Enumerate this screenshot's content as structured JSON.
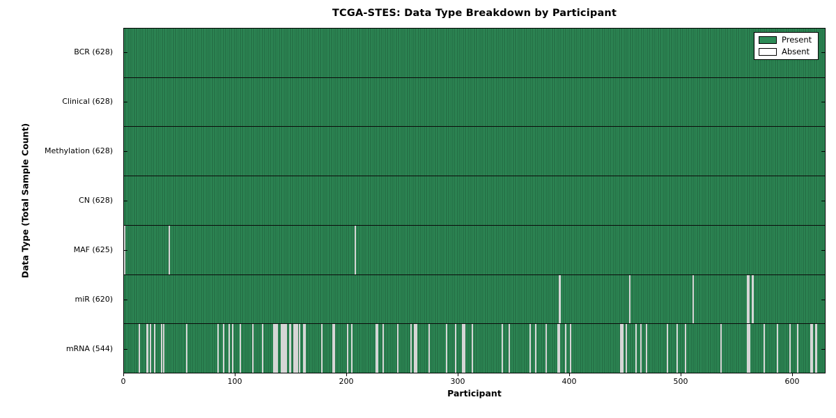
{
  "chart_data": {
    "type": "heatmap",
    "title": "TCGA-STES: Data Type Breakdown by Participant",
    "xlabel": "Participant",
    "ylabel": "Data Type (Total Sample Count)",
    "x_ticks": [
      0,
      100,
      200,
      300,
      400,
      500,
      600
    ],
    "xlim": [
      0,
      630
    ],
    "total_participants": 628,
    "grid": false,
    "legend": {
      "position": "upper-right",
      "entries": [
        {
          "label": "Present",
          "color": "#2e8b57"
        },
        {
          "label": "Absent",
          "color": "#ffffff"
        }
      ]
    },
    "colors": {
      "present": "#2e8b57",
      "present_stripe": "#1e5c3a",
      "absent": "#e4e4e4",
      "border": "#000000"
    },
    "rows": [
      {
        "data_type": "BCR",
        "label": "BCR (628)",
        "present": 628,
        "absent": 0,
        "absent_indices": []
      },
      {
        "data_type": "Clinical",
        "label": "Clinical (628)",
        "present": 628,
        "absent": 0,
        "absent_indices": []
      },
      {
        "data_type": "Methylation",
        "label": "Methylation (628)",
        "present": 628,
        "absent": 0,
        "absent_indices": []
      },
      {
        "data_type": "CN",
        "label": "CN (628)",
        "present": 628,
        "absent": 0,
        "absent_indices": []
      },
      {
        "data_type": "MAF",
        "label": "MAF (625)",
        "present": 625,
        "absent": 3,
        "absent_indices": [
          0,
          40,
          207
        ]
      },
      {
        "data_type": "miR",
        "label": "miR (620)",
        "present": 620,
        "absent": 8,
        "absent_indices": [
          390,
          391,
          453,
          510,
          559,
          560,
          563,
          564
        ]
      },
      {
        "data_type": "mRNA",
        "label": "mRNA (544)",
        "present": 544,
        "absent": 84,
        "absent_indices": [
          13,
          20,
          21,
          23,
          27,
          33,
          35,
          56,
          84,
          89,
          94,
          97,
          104,
          115,
          124,
          134,
          135,
          136,
          137,
          141,
          142,
          143,
          144,
          145,
          148,
          149,
          152,
          153,
          154,
          155,
          157,
          161,
          162,
          177,
          187,
          188,
          200,
          204,
          226,
          227,
          232,
          245,
          257,
          260,
          261,
          262,
          273,
          289,
          297,
          303,
          304,
          305,
          312,
          339,
          345,
          364,
          369,
          378,
          389,
          390,
          396,
          400,
          445,
          446,
          447,
          450,
          459,
          463,
          468,
          487,
          496,
          503,
          535,
          559,
          560,
          561,
          574,
          586,
          597,
          604,
          616,
          617,
          620,
          621
        ]
      }
    ]
  }
}
